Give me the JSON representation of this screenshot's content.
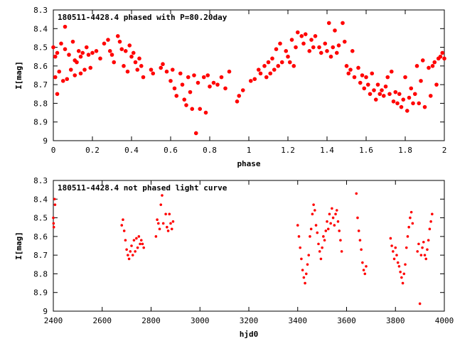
{
  "chart_data": [
    {
      "type": "scatter",
      "title": "180511-4428.4 phased with P=80.20day",
      "xlabel": "phase",
      "ylabel": "I[mag]",
      "xlim": [
        0,
        2
      ],
      "ylim": [
        8.3,
        9.0
      ],
      "y_inverted": true,
      "grid": false,
      "marker_color": "#ff0000",
      "marker": "filled-circle",
      "xticks": [
        0,
        0.2,
        0.4,
        0.6,
        0.8,
        1,
        1.2,
        1.4,
        1.6,
        1.8,
        2
      ],
      "xtick_labels": [
        "0",
        "0.2",
        "0.4",
        "0.6",
        "0.8",
        "1",
        "1.2",
        "1.4",
        "1.6",
        "1.8",
        "2"
      ],
      "yticks": [
        8.3,
        8.4,
        8.5,
        8.6,
        8.7,
        8.8,
        8.9,
        9.0
      ],
      "ytick_labels": [
        "8.3",
        "8.4",
        "8.5",
        "8.6",
        "8.7",
        "8.8",
        "8.9",
        "9"
      ],
      "points": [
        [
          0.0,
          8.5
        ],
        [
          0.01,
          8.66
        ],
        [
          0.01,
          8.55
        ],
        [
          0.02,
          8.75
        ],
        [
          0.02,
          8.53
        ],
        [
          0.03,
          8.63
        ],
        [
          0.04,
          8.48
        ],
        [
          0.05,
          8.68
        ],
        [
          0.06,
          8.51
        ],
        [
          0.06,
          8.39
        ],
        [
          0.07,
          8.67
        ],
        [
          0.08,
          8.54
        ],
        [
          0.09,
          8.62
        ],
        [
          0.1,
          8.47
        ],
        [
          0.11,
          8.57
        ],
        [
          0.11,
          8.65
        ],
        [
          0.12,
          8.58
        ],
        [
          0.13,
          8.52
        ],
        [
          0.14,
          8.55
        ],
        [
          0.14,
          8.64
        ],
        [
          0.15,
          8.53
        ],
        [
          0.16,
          8.62
        ],
        [
          0.17,
          8.5
        ],
        [
          0.18,
          8.54
        ],
        [
          0.19,
          8.61
        ],
        [
          0.2,
          8.53
        ],
        [
          0.22,
          8.52
        ],
        [
          0.24,
          8.56
        ],
        [
          0.26,
          8.48
        ],
        [
          0.28,
          8.46
        ],
        [
          0.29,
          8.52
        ],
        [
          0.3,
          8.54
        ],
        [
          0.31,
          8.58
        ],
        [
          0.33,
          8.44
        ],
        [
          0.34,
          8.47
        ],
        [
          0.35,
          8.51
        ],
        [
          0.36,
          8.6
        ],
        [
          0.37,
          8.52
        ],
        [
          0.38,
          8.63
        ],
        [
          0.39,
          8.49
        ],
        [
          0.4,
          8.55
        ],
        [
          0.41,
          8.53
        ],
        [
          0.42,
          8.58
        ],
        [
          0.43,
          8.62
        ],
        [
          0.44,
          8.56
        ],
        [
          0.45,
          8.6
        ],
        [
          0.46,
          8.66
        ],
        [
          0.5,
          8.62
        ],
        [
          0.51,
          8.64
        ],
        [
          0.55,
          8.61
        ],
        [
          0.56,
          8.59
        ],
        [
          0.58,
          8.63
        ],
        [
          0.6,
          8.68
        ],
        [
          0.61,
          8.62
        ],
        [
          0.62,
          8.72
        ],
        [
          0.63,
          8.76
        ],
        [
          0.65,
          8.64
        ],
        [
          0.66,
          8.7
        ],
        [
          0.67,
          8.78
        ],
        [
          0.68,
          8.81
        ],
        [
          0.69,
          8.66
        ],
        [
          0.7,
          8.74
        ],
        [
          0.71,
          8.83
        ],
        [
          0.72,
          8.65
        ],
        [
          0.73,
          8.96
        ],
        [
          0.74,
          8.69
        ],
        [
          0.75,
          8.83
        ],
        [
          0.77,
          8.66
        ],
        [
          0.78,
          8.85
        ],
        [
          0.79,
          8.65
        ],
        [
          0.8,
          8.71
        ],
        [
          0.82,
          8.69
        ],
        [
          0.84,
          8.7
        ],
        [
          0.86,
          8.66
        ],
        [
          0.88,
          8.72
        ],
        [
          0.9,
          8.63
        ],
        [
          0.94,
          8.79
        ],
        [
          0.95,
          8.76
        ],
        [
          0.97,
          8.73
        ],
        [
          1.01,
          8.68
        ],
        [
          1.03,
          8.67
        ],
        [
          1.05,
          8.62
        ],
        [
          1.06,
          8.64
        ],
        [
          1.08,
          8.6
        ],
        [
          1.09,
          8.66
        ],
        [
          1.1,
          8.58
        ],
        [
          1.11,
          8.64
        ],
        [
          1.12,
          8.56
        ],
        [
          1.13,
          8.62
        ],
        [
          1.14,
          8.51
        ],
        [
          1.15,
          8.6
        ],
        [
          1.16,
          8.48
        ],
        [
          1.17,
          8.58
        ],
        [
          1.19,
          8.52
        ],
        [
          1.2,
          8.55
        ],
        [
          1.21,
          8.58
        ],
        [
          1.22,
          8.46
        ],
        [
          1.23,
          8.6
        ],
        [
          1.24,
          8.5
        ],
        [
          1.25,
          8.42
        ],
        [
          1.27,
          8.44
        ],
        [
          1.28,
          8.48
        ],
        [
          1.29,
          8.43
        ],
        [
          1.31,
          8.52
        ],
        [
          1.32,
          8.46
        ],
        [
          1.33,
          8.5
        ],
        [
          1.34,
          8.44
        ],
        [
          1.36,
          8.5
        ],
        [
          1.37,
          8.53
        ],
        [
          1.39,
          8.48
        ],
        [
          1.4,
          8.52
        ],
        [
          1.41,
          8.37
        ],
        [
          1.42,
          8.55
        ],
        [
          1.43,
          8.5
        ],
        [
          1.44,
          8.41
        ],
        [
          1.45,
          8.53
        ],
        [
          1.46,
          8.49
        ],
        [
          1.48,
          8.37
        ],
        [
          1.49,
          8.47
        ],
        [
          1.5,
          8.6
        ],
        [
          1.51,
          8.64
        ],
        [
          1.52,
          8.62
        ],
        [
          1.53,
          8.52
        ],
        [
          1.54,
          8.66
        ],
        [
          1.56,
          8.61
        ],
        [
          1.57,
          8.69
        ],
        [
          1.58,
          8.65
        ],
        [
          1.59,
          8.72
        ],
        [
          1.6,
          8.66
        ],
        [
          1.61,
          8.7
        ],
        [
          1.62,
          8.75
        ],
        [
          1.63,
          8.64
        ],
        [
          1.64,
          8.73
        ],
        [
          1.65,
          8.78
        ],
        [
          1.66,
          8.7
        ],
        [
          1.67,
          8.75
        ],
        [
          1.68,
          8.73
        ],
        [
          1.69,
          8.76
        ],
        [
          1.7,
          8.71
        ],
        [
          1.71,
          8.66
        ],
        [
          1.72,
          8.75
        ],
        [
          1.73,
          8.63
        ],
        [
          1.74,
          8.79
        ],
        [
          1.75,
          8.74
        ],
        [
          1.76,
          8.8
        ],
        [
          1.77,
          8.75
        ],
        [
          1.78,
          8.82
        ],
        [
          1.79,
          8.78
        ],
        [
          1.8,
          8.66
        ],
        [
          1.81,
          8.84
        ],
        [
          1.82,
          8.77
        ],
        [
          1.83,
          8.72
        ],
        [
          1.84,
          8.8
        ],
        [
          1.85,
          8.75
        ],
        [
          1.86,
          8.6
        ],
        [
          1.87,
          8.8
        ],
        [
          1.88,
          8.68
        ],
        [
          1.89,
          8.57
        ],
        [
          1.9,
          8.82
        ],
        [
          1.92,
          8.61
        ],
        [
          1.93,
          8.76
        ],
        [
          1.94,
          8.6
        ],
        [
          1.95,
          8.58
        ],
        [
          1.96,
          8.7
        ],
        [
          1.97,
          8.56
        ],
        [
          1.98,
          8.55
        ],
        [
          1.99,
          8.53
        ],
        [
          2.0,
          8.56
        ]
      ]
    },
    {
      "type": "scatter",
      "title": "180511-4428.4 not phased light curve",
      "xlabel": "hjd0",
      "ylabel": "I[mag]",
      "xlim": [
        2400,
        4000
      ],
      "ylim": [
        8.3,
        9.0
      ],
      "y_inverted": true,
      "grid": false,
      "marker_color": "#ff0000",
      "marker": "small-dot",
      "xticks": [
        2400,
        2600,
        2800,
        3000,
        3200,
        3400,
        3600,
        3800,
        4000
      ],
      "xtick_labels": [
        "2400",
        "2600",
        "2800",
        "3000",
        "3200",
        "3400",
        "3600",
        "3800",
        "4000"
      ],
      "yticks": [
        8.3,
        8.4,
        8.5,
        8.6,
        8.7,
        8.8,
        8.9,
        9.0
      ],
      "ytick_labels": [
        "8.3",
        "8.4",
        "8.5",
        "8.6",
        "8.7",
        "8.8",
        "8.9",
        "9"
      ],
      "points": [
        [
          2400,
          8.5
        ],
        [
          2401,
          8.53
        ],
        [
          2402,
          8.55
        ],
        [
          2405,
          8.4
        ],
        [
          2407,
          8.43
        ],
        [
          2680,
          8.54
        ],
        [
          2685,
          8.51
        ],
        [
          2690,
          8.57
        ],
        [
          2695,
          8.62
        ],
        [
          2700,
          8.67
        ],
        [
          2705,
          8.7
        ],
        [
          2710,
          8.72
        ],
        [
          2715,
          8.68
        ],
        [
          2720,
          8.65
        ],
        [
          2725,
          8.7
        ],
        [
          2730,
          8.62
        ],
        [
          2735,
          8.68
        ],
        [
          2740,
          8.61
        ],
        [
          2745,
          8.66
        ],
        [
          2750,
          8.6
        ],
        [
          2755,
          8.64
        ],
        [
          2760,
          8.62
        ],
        [
          2765,
          8.64
        ],
        [
          2770,
          8.66
        ],
        [
          2820,
          8.6
        ],
        [
          2825,
          8.51
        ],
        [
          2830,
          8.53
        ],
        [
          2835,
          8.56
        ],
        [
          2840,
          8.43
        ],
        [
          2845,
          8.38
        ],
        [
          2850,
          8.53
        ],
        [
          2860,
          8.48
        ],
        [
          2865,
          8.55
        ],
        [
          2870,
          8.57
        ],
        [
          2875,
          8.48
        ],
        [
          2880,
          8.53
        ],
        [
          2885,
          8.56
        ],
        [
          2890,
          8.52
        ],
        [
          3400,
          8.54
        ],
        [
          3405,
          8.6
        ],
        [
          3410,
          8.66
        ],
        [
          3415,
          8.72
        ],
        [
          3420,
          8.78
        ],
        [
          3425,
          8.82
        ],
        [
          3430,
          8.85
        ],
        [
          3435,
          8.8
        ],
        [
          3440,
          8.75
        ],
        [
          3445,
          8.7
        ],
        [
          3450,
          8.6
        ],
        [
          3455,
          8.56
        ],
        [
          3460,
          8.48
        ],
        [
          3465,
          8.43
        ],
        [
          3470,
          8.46
        ],
        [
          3475,
          8.54
        ],
        [
          3480,
          8.58
        ],
        [
          3485,
          8.64
        ],
        [
          3490,
          8.68
        ],
        [
          3495,
          8.72
        ],
        [
          3500,
          8.66
        ],
        [
          3505,
          8.6
        ],
        [
          3510,
          8.62
        ],
        [
          3515,
          8.57
        ],
        [
          3520,
          8.52
        ],
        [
          3525,
          8.56
        ],
        [
          3530,
          8.48
        ],
        [
          3535,
          8.53
        ],
        [
          3540,
          8.45
        ],
        [
          3545,
          8.5
        ],
        [
          3550,
          8.54
        ],
        [
          3555,
          8.48
        ],
        [
          3560,
          8.46
        ],
        [
          3565,
          8.52
        ],
        [
          3570,
          8.57
        ],
        [
          3575,
          8.62
        ],
        [
          3580,
          8.68
        ],
        [
          3640,
          8.37
        ],
        [
          3645,
          8.5
        ],
        [
          3650,
          8.57
        ],
        [
          3655,
          8.62
        ],
        [
          3660,
          8.67
        ],
        [
          3665,
          8.74
        ],
        [
          3670,
          8.78
        ],
        [
          3675,
          8.8
        ],
        [
          3680,
          8.76
        ],
        [
          3780,
          8.61
        ],
        [
          3785,
          8.65
        ],
        [
          3790,
          8.68
        ],
        [
          3795,
          8.72
        ],
        [
          3800,
          8.66
        ],
        [
          3805,
          8.7
        ],
        [
          3810,
          8.74
        ],
        [
          3815,
          8.76
        ],
        [
          3820,
          8.79
        ],
        [
          3825,
          8.82
        ],
        [
          3830,
          8.85
        ],
        [
          3835,
          8.8
        ],
        [
          3840,
          8.75
        ],
        [
          3845,
          8.66
        ],
        [
          3850,
          8.6
        ],
        [
          3855,
          8.55
        ],
        [
          3860,
          8.5
        ],
        [
          3865,
          8.47
        ],
        [
          3870,
          8.53
        ],
        [
          3890,
          8.68
        ],
        [
          3895,
          8.64
        ],
        [
          3900,
          8.96
        ],
        [
          3905,
          8.7
        ],
        [
          3910,
          8.66
        ],
        [
          3915,
          8.63
        ],
        [
          3920,
          8.7
        ],
        [
          3925,
          8.72
        ],
        [
          3930,
          8.67
        ],
        [
          3935,
          8.62
        ],
        [
          3940,
          8.56
        ],
        [
          3945,
          8.52
        ],
        [
          3950,
          8.48
        ]
      ]
    }
  ]
}
